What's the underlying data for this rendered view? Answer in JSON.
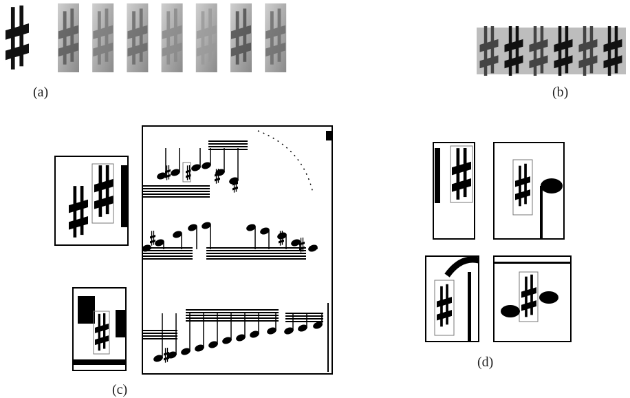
{
  "labels": {
    "a": "(a)",
    "b": "(b)",
    "c": "(c)",
    "d": "(d)"
  }
}
